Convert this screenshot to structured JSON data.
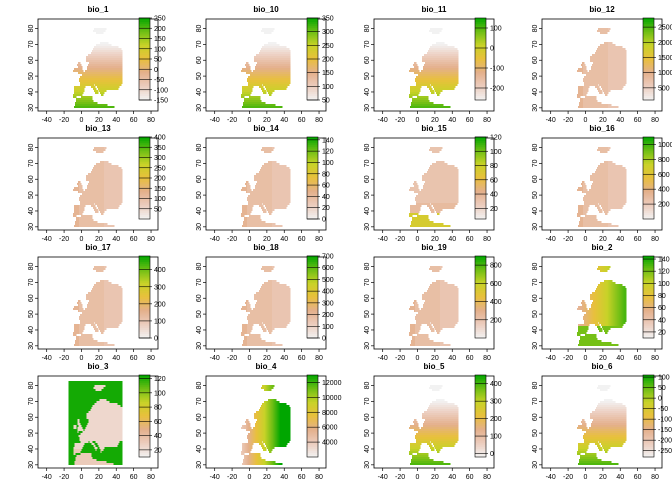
{
  "chart_data": [
    {
      "type": "heatmap",
      "title": "bio_1",
      "pattern": "temp",
      "xticks": [
        "-40",
        "-20",
        "0",
        "20",
        "40",
        "60",
        "80"
      ],
      "yticks": [
        "30",
        "40",
        "50",
        "60",
        "70",
        "80"
      ],
      "legend_ticks": [
        "250",
        "200",
        "150",
        "100",
        "50",
        "0",
        "-50",
        "-100",
        "-150"
      ],
      "legend_range": [
        -150,
        250
      ]
    },
    {
      "type": "heatmap",
      "title": "bio_10",
      "pattern": "temp",
      "xticks": [
        "-40",
        "-20",
        "0",
        "20",
        "40",
        "60",
        "80"
      ],
      "yticks": [
        "30",
        "40",
        "50",
        "60",
        "70",
        "80"
      ],
      "legend_ticks": [
        "350",
        "300",
        "250",
        "200",
        "150",
        "100",
        "50"
      ],
      "legend_range": [
        50,
        350
      ]
    },
    {
      "type": "heatmap",
      "title": "bio_11",
      "pattern": "temp",
      "xticks": [
        "-40",
        "-20",
        "0",
        "20",
        "40",
        "60",
        "80"
      ],
      "yticks": [
        "30",
        "40",
        "50",
        "60",
        "70",
        "80"
      ],
      "legend_ticks": [
        "100",
        "0",
        "-100",
        "-200"
      ],
      "legend_range": [
        -260,
        150
      ]
    },
    {
      "type": "heatmap",
      "title": "bio_12",
      "pattern": "precip",
      "xticks": [
        "-40",
        "-20",
        "0",
        "20",
        "40",
        "60",
        "80"
      ],
      "yticks": [
        "30",
        "40",
        "50",
        "60",
        "70",
        "80"
      ],
      "legend_ticks": [
        "2500",
        "2000",
        "1500",
        "1000",
        "500"
      ],
      "legend_range": [
        100,
        2800
      ]
    },
    {
      "type": "heatmap",
      "title": "bio_13",
      "pattern": "precip",
      "xticks": [
        "-40",
        "-20",
        "0",
        "20",
        "40",
        "60",
        "80"
      ],
      "yticks": [
        "30",
        "40",
        "50",
        "60",
        "70",
        "80"
      ],
      "legend_ticks": [
        "400",
        "350",
        "300",
        "250",
        "200",
        "150",
        "100",
        "50"
      ],
      "legend_range": [
        0,
        400
      ]
    },
    {
      "type": "heatmap",
      "title": "bio_14",
      "pattern": "precip",
      "xticks": [
        "-40",
        "-20",
        "0",
        "20",
        "40",
        "60",
        "80"
      ],
      "yticks": [
        "30",
        "40",
        "50",
        "60",
        "70",
        "80"
      ],
      "legend_ticks": [
        "140",
        "120",
        "100",
        "80",
        "60",
        "40",
        "20",
        "0"
      ],
      "legend_range": [
        0,
        145
      ]
    },
    {
      "type": "heatmap",
      "title": "bio_15",
      "pattern": "season",
      "xticks": [
        "-40",
        "-20",
        "0",
        "20",
        "40",
        "60",
        "80"
      ],
      "yticks": [
        "30",
        "40",
        "50",
        "60",
        "70",
        "80"
      ],
      "legend_ticks": [
        "120",
        "100",
        "80",
        "60",
        "40",
        "20"
      ],
      "legend_range": [
        5,
        120
      ]
    },
    {
      "type": "heatmap",
      "title": "bio_16",
      "pattern": "precip",
      "xticks": [
        "-40",
        "-20",
        "0",
        "20",
        "40",
        "60",
        "80"
      ],
      "yticks": [
        "30",
        "40",
        "50",
        "60",
        "70",
        "80"
      ],
      "legend_ticks": [
        "1000",
        "800",
        "600",
        "400",
        "200"
      ],
      "legend_range": [
        0,
        1100
      ]
    },
    {
      "type": "heatmap",
      "title": "bio_17",
      "pattern": "precip",
      "xticks": [
        "-40",
        "-20",
        "0",
        "20",
        "40",
        "60",
        "80"
      ],
      "yticks": [
        "30",
        "40",
        "50",
        "60",
        "70",
        "80"
      ],
      "legend_ticks": [
        "400",
        "300",
        "200",
        "100",
        "0"
      ],
      "legend_range": [
        0,
        480
      ]
    },
    {
      "type": "heatmap",
      "title": "bio_18",
      "pattern": "precip",
      "xticks": [
        "-40",
        "-20",
        "0",
        "20",
        "40",
        "60",
        "80"
      ],
      "yticks": [
        "30",
        "40",
        "50",
        "60",
        "70",
        "80"
      ],
      "legend_ticks": [
        "700",
        "600",
        "500",
        "400",
        "300",
        "200",
        "100",
        "0"
      ],
      "legend_range": [
        0,
        700
      ]
    },
    {
      "type": "heatmap",
      "title": "bio_19",
      "pattern": "precip",
      "xticks": [
        "-40",
        "-20",
        "0",
        "20",
        "40",
        "60",
        "80"
      ],
      "yticks": [
        "30",
        "40",
        "50",
        "60",
        "70",
        "80"
      ],
      "legend_ticks": [
        "800",
        "600",
        "400",
        "200"
      ],
      "legend_range": [
        0,
        900
      ]
    },
    {
      "type": "heatmap",
      "title": "bio_2",
      "pattern": "south",
      "xticks": [
        "-40",
        "-20",
        "0",
        "20",
        "40",
        "60",
        "80"
      ],
      "yticks": [
        "30",
        "40",
        "50",
        "60",
        "70",
        "80"
      ],
      "legend_ticks": [
        "140",
        "120",
        "100",
        "80",
        "60",
        "40",
        "20"
      ],
      "legend_range": [
        10,
        145
      ]
    },
    {
      "type": "heatmap",
      "title": "bio_3",
      "pattern": "full",
      "xticks": [
        "-40",
        "-20",
        "0",
        "20",
        "40",
        "60",
        "80"
      ],
      "yticks": [
        "30",
        "40",
        "50",
        "60",
        "70",
        "80"
      ],
      "legend_ticks": [
        "120",
        "100",
        "80",
        "60",
        "40",
        "20"
      ],
      "legend_range": [
        10,
        125
      ]
    },
    {
      "type": "heatmap",
      "title": "bio_4",
      "pattern": "east",
      "xticks": [
        "-40",
        "-20",
        "0",
        "20",
        "40",
        "60",
        "80"
      ],
      "yticks": [
        "30",
        "40",
        "50",
        "60",
        "70",
        "80"
      ],
      "legend_ticks": [
        "12000",
        "10000",
        "8000",
        "6000",
        "4000"
      ],
      "legend_range": [
        2000,
        13000
      ]
    },
    {
      "type": "heatmap",
      "title": "bio_5",
      "pattern": "temp",
      "xticks": [
        "-40",
        "-20",
        "0",
        "20",
        "40",
        "60",
        "80"
      ],
      "yticks": [
        "30",
        "40",
        "50",
        "60",
        "70",
        "80"
      ],
      "legend_ticks": [
        "400",
        "300",
        "200",
        "100",
        "0"
      ],
      "legend_range": [
        -20,
        450
      ]
    },
    {
      "type": "heatmap",
      "title": "bio_6",
      "pattern": "temp",
      "xticks": [
        "-40",
        "-20",
        "0",
        "20",
        "40",
        "60",
        "80"
      ],
      "yticks": [
        "30",
        "40",
        "50",
        "60",
        "70",
        "80"
      ],
      "legend_ticks": [
        "100",
        "50",
        "0",
        "-50",
        "-100",
        "-150",
        "-200",
        "-250"
      ],
      "legend_range": [
        -280,
        110
      ]
    }
  ]
}
